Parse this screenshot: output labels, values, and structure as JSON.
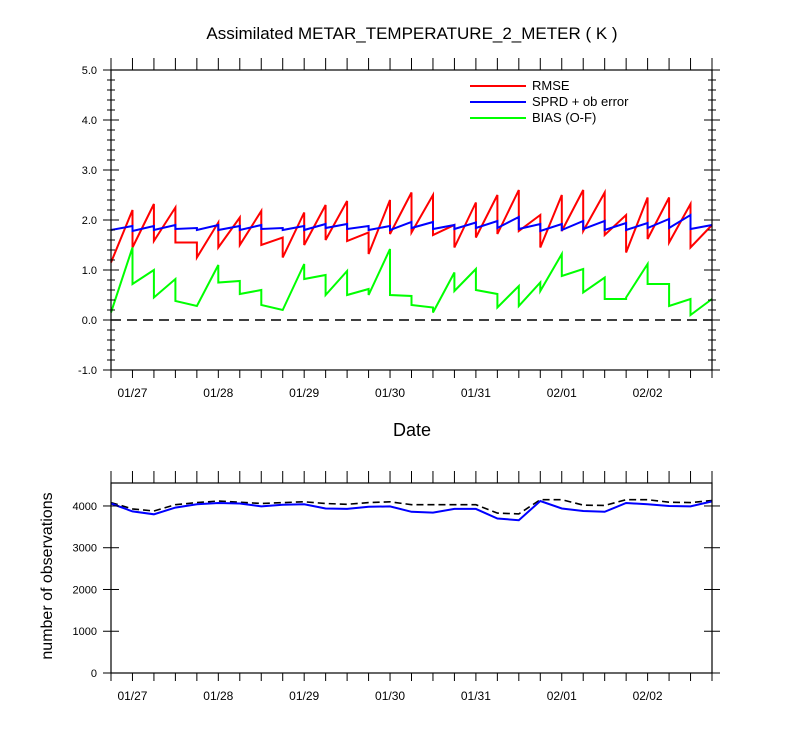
{
  "chart_data": [
    {
      "type": "line",
      "title": "Assimilated METAR_TEMPERATURE_2_METER ( K )",
      "xlabel": "Date",
      "ylabel": "",
      "ylim": [
        -1.0,
        5.0
      ],
      "yticks": [
        "-1.0",
        "0.0",
        "1.0",
        "2.0",
        "3.0",
        "4.0",
        "5.0"
      ],
      "xlim": [
        0,
        14
      ],
      "xticks": [
        {
          "x": 0.5,
          "label": "01/27"
        },
        {
          "x": 2.5,
          "label": "01/28"
        },
        {
          "x": 4.5,
          "label": "01/29"
        },
        {
          "x": 6.5,
          "label": "01/30"
        },
        {
          "x": 8.5,
          "label": "01/31"
        },
        {
          "x": 10.5,
          "label": "02/01"
        },
        {
          "x": 12.5,
          "label": "02/02"
        }
      ],
      "legend_position": "top-right",
      "reference_line": {
        "y": 0.0,
        "style": "dashed",
        "color": "#000000"
      },
      "series": [
        {
          "name": "RMSE",
          "color": "#ff0000",
          "points": [
            [
              0.0,
              1.15
            ],
            [
              0.5,
              2.2
            ],
            [
              0.5,
              1.45
            ],
            [
              1.0,
              2.32
            ],
            [
              1.0,
              1.58
            ],
            [
              1.5,
              2.25
            ],
            [
              1.5,
              1.55
            ],
            [
              2.0,
              1.55
            ],
            [
              2.0,
              1.25
            ],
            [
              2.5,
              1.95
            ],
            [
              2.5,
              1.45
            ],
            [
              3.0,
              2.05
            ],
            [
              3.0,
              1.5
            ],
            [
              3.5,
              2.18
            ],
            [
              3.5,
              1.5
            ],
            [
              4.0,
              1.65
            ],
            [
              4.0,
              1.25
            ],
            [
              4.5,
              2.15
            ],
            [
              4.5,
              1.5
            ],
            [
              5.0,
              2.3
            ],
            [
              5.0,
              1.6
            ],
            [
              5.5,
              2.38
            ],
            [
              5.5,
              1.58
            ],
            [
              6.0,
              1.75
            ],
            [
              6.0,
              1.32
            ],
            [
              6.5,
              2.4
            ],
            [
              6.5,
              1.72
            ],
            [
              7.0,
              2.55
            ],
            [
              7.0,
              1.75
            ],
            [
              7.5,
              2.5
            ],
            [
              7.5,
              1.7
            ],
            [
              8.0,
              1.9
            ],
            [
              8.0,
              1.45
            ],
            [
              8.5,
              2.35
            ],
            [
              8.5,
              1.65
            ],
            [
              9.0,
              2.5
            ],
            [
              9.0,
              1.72
            ],
            [
              9.5,
              2.6
            ],
            [
              9.5,
              1.78
            ],
            [
              10.0,
              2.1
            ],
            [
              10.0,
              1.45
            ],
            [
              10.5,
              2.5
            ],
            [
              10.5,
              1.78
            ],
            [
              11.0,
              2.6
            ],
            [
              11.0,
              1.78
            ],
            [
              11.5,
              2.55
            ],
            [
              11.5,
              1.7
            ],
            [
              12.0,
              2.1
            ],
            [
              12.0,
              1.35
            ],
            [
              12.5,
              2.45
            ],
            [
              12.5,
              1.62
            ],
            [
              13.0,
              2.45
            ],
            [
              13.0,
              1.55
            ],
            [
              13.5,
              2.32
            ],
            [
              13.5,
              1.45
            ],
            [
              14.0,
              1.9
            ]
          ]
        },
        {
          "name": "SPRD + ob error",
          "color": "#0000ff",
          "points": [
            [
              0.0,
              1.8
            ],
            [
              0.5,
              1.88
            ],
            [
              0.5,
              1.78
            ],
            [
              1.0,
              1.88
            ],
            [
              1.0,
              1.8
            ],
            [
              1.5,
              1.9
            ],
            [
              1.5,
              1.82
            ],
            [
              2.0,
              1.84
            ],
            [
              2.0,
              1.8
            ],
            [
              2.5,
              1.9
            ],
            [
              2.5,
              1.8
            ],
            [
              3.0,
              1.88
            ],
            [
              3.0,
              1.8
            ],
            [
              3.5,
              1.9
            ],
            [
              3.5,
              1.82
            ],
            [
              4.0,
              1.84
            ],
            [
              4.0,
              1.8
            ],
            [
              4.5,
              1.88
            ],
            [
              4.5,
              1.8
            ],
            [
              5.0,
              1.92
            ],
            [
              5.0,
              1.84
            ],
            [
              5.5,
              1.92
            ],
            [
              5.5,
              1.82
            ],
            [
              6.0,
              1.88
            ],
            [
              6.0,
              1.8
            ],
            [
              6.5,
              1.88
            ],
            [
              6.5,
              1.8
            ],
            [
              7.0,
              1.96
            ],
            [
              7.0,
              1.84
            ],
            [
              7.5,
              1.96
            ],
            [
              7.5,
              1.82
            ],
            [
              8.0,
              1.9
            ],
            [
              8.0,
              1.82
            ],
            [
              8.5,
              1.95
            ],
            [
              8.5,
              1.84
            ],
            [
              9.0,
              1.98
            ],
            [
              9.0,
              1.84
            ],
            [
              9.5,
              2.06
            ],
            [
              9.5,
              1.82
            ],
            [
              10.0,
              1.92
            ],
            [
              10.0,
              1.78
            ],
            [
              10.5,
              1.92
            ],
            [
              10.5,
              1.8
            ],
            [
              11.0,
              1.98
            ],
            [
              11.0,
              1.82
            ],
            [
              11.5,
              1.98
            ],
            [
              11.5,
              1.8
            ],
            [
              12.0,
              1.94
            ],
            [
              12.0,
              1.8
            ],
            [
              12.5,
              1.94
            ],
            [
              12.5,
              1.84
            ],
            [
              13.0,
              2.02
            ],
            [
              13.0,
              1.84
            ],
            [
              13.5,
              2.1
            ],
            [
              13.5,
              1.82
            ],
            [
              14.0,
              1.9
            ]
          ]
        },
        {
          "name": "BIAS (O-F)",
          "color": "#00ff00",
          "points": [
            [
              0.0,
              0.15
            ],
            [
              0.5,
              1.45
            ],
            [
              0.5,
              0.72
            ],
            [
              1.0,
              1.0
            ],
            [
              1.0,
              0.45
            ],
            [
              1.5,
              0.82
            ],
            [
              1.5,
              0.38
            ],
            [
              2.0,
              0.28
            ],
            [
              2.5,
              1.1
            ],
            [
              2.5,
              0.75
            ],
            [
              3.0,
              0.78
            ],
            [
              3.0,
              0.52
            ],
            [
              3.5,
              0.6
            ],
            [
              3.5,
              0.3
            ],
            [
              4.0,
              0.2
            ],
            [
              4.5,
              1.12
            ],
            [
              4.5,
              0.82
            ],
            [
              5.0,
              0.9
            ],
            [
              5.0,
              0.5
            ],
            [
              5.5,
              0.98
            ],
            [
              5.5,
              0.5
            ],
            [
              6.0,
              0.62
            ],
            [
              6.0,
              0.5
            ],
            [
              6.5,
              1.42
            ],
            [
              6.5,
              0.5
            ],
            [
              7.0,
              0.48
            ],
            [
              7.0,
              0.3
            ],
            [
              7.5,
              0.25
            ],
            [
              7.5,
              0.15
            ],
            [
              8.0,
              0.95
            ],
            [
              8.0,
              0.58
            ],
            [
              8.5,
              1.02
            ],
            [
              8.5,
              0.6
            ],
            [
              9.0,
              0.52
            ],
            [
              9.0,
              0.25
            ],
            [
              9.5,
              0.68
            ],
            [
              9.5,
              0.28
            ],
            [
              10.0,
              0.75
            ],
            [
              10.0,
              0.58
            ],
            [
              10.5,
              1.32
            ],
            [
              10.5,
              0.88
            ],
            [
              11.0,
              1.02
            ],
            [
              11.0,
              0.55
            ],
            [
              11.5,
              0.85
            ],
            [
              11.5,
              0.42
            ],
            [
              12.0,
              0.42
            ],
            [
              12.0,
              0.45
            ],
            [
              12.5,
              1.12
            ],
            [
              12.5,
              0.72
            ],
            [
              13.0,
              0.72
            ],
            [
              13.0,
              0.28
            ],
            [
              13.5,
              0.42
            ],
            [
              13.5,
              0.1
            ],
            [
              14.0,
              0.42
            ]
          ]
        }
      ]
    },
    {
      "type": "line",
      "title": "",
      "xlabel": "",
      "ylabel": "number of observations",
      "ylim": [
        0,
        4550
      ],
      "yticks": [
        "0",
        "1000",
        "2000",
        "3000",
        "4000"
      ],
      "xlim": [
        0,
        14
      ],
      "xticks": [
        {
          "x": 0.5,
          "label": "01/27"
        },
        {
          "x": 2.5,
          "label": "01/28"
        },
        {
          "x": 4.5,
          "label": "01/29"
        },
        {
          "x": 6.5,
          "label": "01/30"
        },
        {
          "x": 8.5,
          "label": "01/31"
        },
        {
          "x": 10.5,
          "label": "02/01"
        },
        {
          "x": 12.5,
          "label": "02/02"
        }
      ],
      "series": [
        {
          "name": "",
          "color": "#000000",
          "style": "dashed",
          "points": [
            [
              0.0,
              4080
            ],
            [
              0.5,
              3930
            ],
            [
              1.0,
              3880
            ],
            [
              1.5,
              4030
            ],
            [
              2.0,
              4080
            ],
            [
              2.5,
              4120
            ],
            [
              3.0,
              4090
            ],
            [
              3.5,
              4060
            ],
            [
              4.0,
              4080
            ],
            [
              4.5,
              4100
            ],
            [
              5.0,
              4060
            ],
            [
              5.5,
              4040
            ],
            [
              6.0,
              4080
            ],
            [
              6.5,
              4100
            ],
            [
              7.0,
              4030
            ],
            [
              7.5,
              4030
            ],
            [
              8.0,
              4030
            ],
            [
              8.5,
              4030
            ],
            [
              9.0,
              3830
            ],
            [
              9.5,
              3810
            ],
            [
              10.0,
              4150
            ],
            [
              10.5,
              4150
            ],
            [
              11.0,
              4020
            ],
            [
              11.5,
              4010
            ],
            [
              12.0,
              4150
            ],
            [
              12.5,
              4150
            ],
            [
              13.0,
              4090
            ],
            [
              13.5,
              4080
            ],
            [
              14.0,
              4130
            ]
          ]
        },
        {
          "name": "",
          "color": "#0000ff",
          "style": "solid",
          "points": [
            [
              0.0,
              4060
            ],
            [
              0.5,
              3870
            ],
            [
              1.0,
              3800
            ],
            [
              1.5,
              3960
            ],
            [
              2.0,
              4040
            ],
            [
              2.5,
              4070
            ],
            [
              3.0,
              4060
            ],
            [
              3.5,
              3990
            ],
            [
              4.0,
              4030
            ],
            [
              4.5,
              4040
            ],
            [
              5.0,
              3940
            ],
            [
              5.5,
              3930
            ],
            [
              6.0,
              3980
            ],
            [
              6.5,
              3990
            ],
            [
              7.0,
              3860
            ],
            [
              7.5,
              3840
            ],
            [
              8.0,
              3930
            ],
            [
              8.5,
              3930
            ],
            [
              9.0,
              3700
            ],
            [
              9.5,
              3660
            ],
            [
              10.0,
              4120
            ],
            [
              10.5,
              3940
            ],
            [
              11.0,
              3880
            ],
            [
              11.5,
              3860
            ],
            [
              12.0,
              4070
            ],
            [
              12.5,
              4040
            ],
            [
              13.0,
              4000
            ],
            [
              13.5,
              3990
            ],
            [
              14.0,
              4110
            ]
          ]
        }
      ]
    }
  ]
}
